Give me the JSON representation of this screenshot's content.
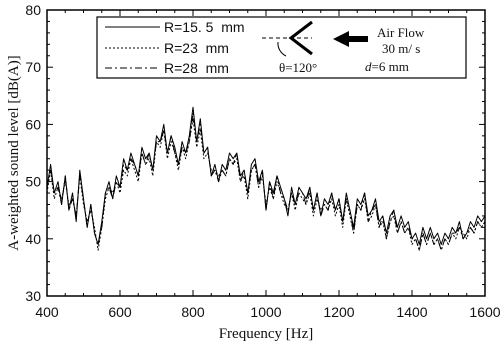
{
  "chart_data": {
    "type": "line",
    "xlabel": "Frequency [Hz]",
    "ylabel": "A-weighted sound level [dB(A)]",
    "xlim": [
      400,
      1600
    ],
    "ylim": [
      30,
      80
    ],
    "x_ticks": [
      400,
      600,
      800,
      1000,
      1200,
      1400,
      1600
    ],
    "y_ticks": [
      30,
      40,
      50,
      60,
      70,
      80
    ],
    "grid": false,
    "legend_placement": "top",
    "series": [
      {
        "name": "R=15. 5  mm",
        "dash": "solid",
        "x": [
          400,
          410,
          420,
          430,
          440,
          450,
          460,
          470,
          480,
          490,
          500,
          510,
          520,
          530,
          540,
          550,
          560,
          570,
          580,
          590,
          600,
          610,
          620,
          630,
          640,
          650,
          660,
          670,
          680,
          690,
          700,
          710,
          720,
          730,
          740,
          750,
          760,
          770,
          780,
          790,
          800,
          810,
          820,
          830,
          840,
          850,
          860,
          870,
          880,
          890,
          900,
          910,
          920,
          930,
          940,
          950,
          960,
          970,
          980,
          990,
          1000,
          1010,
          1020,
          1030,
          1040,
          1050,
          1060,
          1070,
          1080,
          1090,
          1100,
          1110,
          1120,
          1130,
          1140,
          1150,
          1160,
          1170,
          1180,
          1190,
          1200,
          1210,
          1220,
          1230,
          1240,
          1250,
          1260,
          1270,
          1280,
          1290,
          1300,
          1310,
          1320,
          1330,
          1340,
          1350,
          1360,
          1370,
          1380,
          1390,
          1400,
          1410,
          1420,
          1430,
          1440,
          1450,
          1460,
          1470,
          1480,
          1490,
          1500,
          1510,
          1520,
          1530,
          1540,
          1550,
          1560,
          1570,
          1580,
          1590,
          1600
        ],
        "y": [
          49,
          53,
          48,
          50,
          46,
          51,
          45,
          48,
          43,
          52,
          47,
          42,
          46,
          41,
          39,
          43,
          48,
          50,
          47,
          51,
          49,
          54,
          52,
          55,
          53,
          51,
          56,
          54,
          55,
          52,
          58,
          57,
          60,
          55,
          58,
          56,
          53,
          57,
          55,
          58,
          63,
          57,
          61,
          55,
          56,
          51,
          53,
          50,
          53,
          52,
          55,
          54,
          55,
          51,
          52,
          48,
          53,
          54,
          50,
          52,
          45,
          50,
          48,
          51,
          49,
          47,
          44,
          49,
          46,
          49,
          48,
          47,
          49,
          45,
          48,
          44,
          47,
          46,
          48,
          45,
          47,
          43,
          48,
          45,
          42,
          47,
          46,
          48,
          44,
          45,
          47,
          43,
          44,
          41,
          44,
          45,
          42,
          44,
          42,
          43,
          40,
          41,
          39,
          42,
          40,
          42,
          40,
          41,
          39,
          41,
          40,
          42,
          41,
          43,
          40,
          41,
          43,
          42,
          44,
          43,
          44
        ]
      },
      {
        "name": "R=23  mm",
        "dash": "dotted",
        "x": [
          400,
          410,
          420,
          430,
          440,
          450,
          460,
          470,
          480,
          490,
          500,
          510,
          520,
          530,
          540,
          550,
          560,
          570,
          580,
          590,
          600,
          610,
          620,
          630,
          640,
          650,
          660,
          670,
          680,
          690,
          700,
          710,
          720,
          730,
          740,
          750,
          760,
          770,
          780,
          790,
          800,
          810,
          820,
          830,
          840,
          850,
          860,
          870,
          880,
          890,
          900,
          910,
          920,
          930,
          940,
          950,
          960,
          970,
          980,
          990,
          1000,
          1010,
          1020,
          1030,
          1040,
          1050,
          1060,
          1070,
          1080,
          1090,
          1100,
          1110,
          1120,
          1130,
          1140,
          1150,
          1160,
          1170,
          1180,
          1190,
          1200,
          1210,
          1220,
          1230,
          1240,
          1250,
          1260,
          1270,
          1280,
          1290,
          1300,
          1310,
          1320,
          1330,
          1340,
          1350,
          1360,
          1370,
          1380,
          1390,
          1400,
          1410,
          1420,
          1430,
          1440,
          1450,
          1460,
          1470,
          1480,
          1490,
          1500,
          1510,
          1520,
          1530,
          1540,
          1550,
          1560,
          1570,
          1580,
          1590,
          1600
        ],
        "y": [
          48,
          52,
          47,
          49,
          47,
          50,
          46,
          47,
          44,
          51,
          46,
          43,
          45,
          42,
          38,
          42,
          47,
          49,
          48,
          50,
          48,
          52,
          51,
          54,
          52,
          50,
          55,
          53,
          54,
          51,
          57,
          56,
          59,
          54,
          57,
          55,
          52,
          56,
          54,
          57,
          61,
          56,
          59,
          54,
          55,
          52,
          52,
          51,
          52,
          51,
          54,
          53,
          54,
          50,
          51,
          47,
          52,
          53,
          49,
          51,
          46,
          49,
          47,
          50,
          48,
          46,
          45,
          48,
          45,
          48,
          47,
          46,
          48,
          44,
          47,
          45,
          46,
          45,
          47,
          44,
          46,
          42,
          47,
          44,
          41,
          46,
          45,
          47,
          43,
          44,
          46,
          42,
          43,
          40,
          43,
          44,
          41,
          43,
          41,
          42,
          39,
          40,
          38,
          41,
          39,
          41,
          39,
          40,
          38,
          40,
          39,
          41,
          40,
          42,
          41,
          40,
          42,
          41,
          43,
          42,
          43
        ]
      },
      {
        "name": "R=28  mm",
        "dash": "dashdot",
        "x": [
          400,
          410,
          420,
          430,
          440,
          450,
          460,
          470,
          480,
          490,
          500,
          510,
          520,
          530,
          540,
          550,
          560,
          570,
          580,
          590,
          600,
          610,
          620,
          630,
          640,
          650,
          660,
          670,
          680,
          690,
          700,
          710,
          720,
          730,
          740,
          750,
          760,
          770,
          780,
          790,
          800,
          810,
          820,
          830,
          840,
          850,
          860,
          870,
          880,
          890,
          900,
          910,
          920,
          930,
          940,
          950,
          960,
          970,
          980,
          990,
          1000,
          1010,
          1020,
          1030,
          1040,
          1050,
          1060,
          1070,
          1080,
          1090,
          1100,
          1110,
          1120,
          1130,
          1140,
          1150,
          1160,
          1170,
          1180,
          1190,
          1200,
          1210,
          1220,
          1230,
          1240,
          1250,
          1260,
          1270,
          1280,
          1290,
          1300,
          1310,
          1320,
          1330,
          1340,
          1350,
          1360,
          1370,
          1380,
          1390,
          1400,
          1410,
          1420,
          1430,
          1440,
          1450,
          1460,
          1470,
          1480,
          1490,
          1500,
          1510,
          1520,
          1530,
          1540,
          1550,
          1560,
          1570,
          1580,
          1590,
          1600
        ],
        "y": [
          49,
          52,
          48,
          49,
          46,
          51,
          45,
          47,
          44,
          51,
          47,
          42,
          46,
          41,
          39,
          42,
          48,
          49,
          47,
          50,
          49,
          53,
          52,
          54,
          53,
          51,
          55,
          53,
          55,
          52,
          57,
          57,
          59,
          55,
          58,
          55,
          53,
          56,
          55,
          57,
          62,
          57,
          60,
          55,
          56,
          51,
          52,
          50,
          52,
          51,
          54,
          53,
          55,
          50,
          52,
          48,
          52,
          53,
          49,
          52,
          45,
          50,
          47,
          51,
          48,
          47,
          45,
          48,
          46,
          48,
          48,
          46,
          49,
          45,
          48,
          44,
          46,
          45,
          48,
          45,
          47,
          43,
          47,
          45,
          41,
          46,
          45,
          48,
          43,
          45,
          46,
          42,
          44,
          40,
          43,
          45,
          41,
          43,
          41,
          42,
          40,
          40,
          38,
          41,
          39,
          41,
          39,
          40,
          38,
          40,
          39,
          41,
          41,
          42,
          40,
          41,
          42,
          41,
          43,
          42,
          43
        ]
      }
    ]
  },
  "annotation": {
    "angle_label": "θ=120°",
    "airflow_label": "Air Flow",
    "airflow_speed": "30 m/ s",
    "d_label": "d",
    "d_value": "=6 mm"
  },
  "colors": {
    "line": "#000000",
    "axis": "#000000",
    "background": "#ffffff"
  }
}
